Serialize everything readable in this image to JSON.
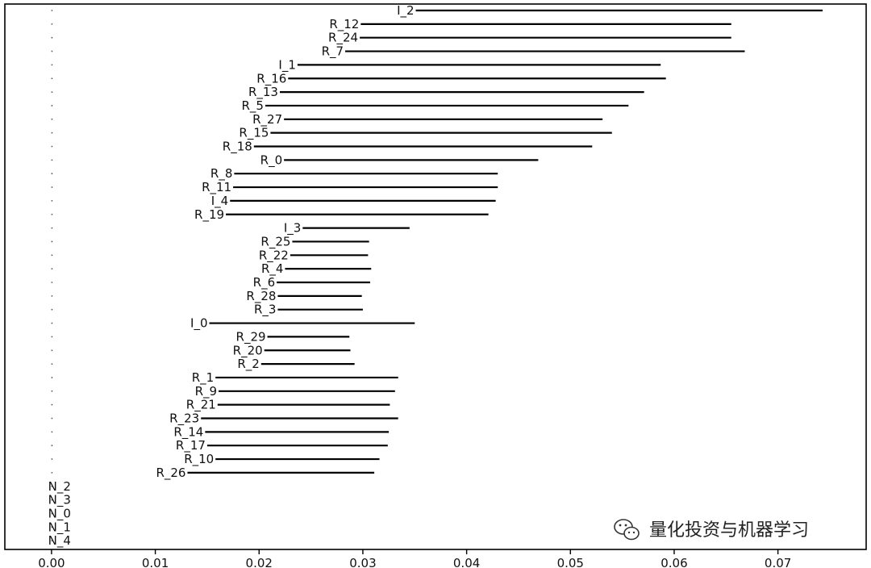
{
  "chart_data": {
    "type": "interval",
    "title": "",
    "xlabel": "",
    "ylabel": "",
    "xlim": [
      -0.0045,
      0.0785
    ],
    "xticks": [
      0.0,
      0.01,
      0.02,
      0.03,
      0.04,
      0.05,
      0.06,
      0.07
    ],
    "xtick_labels": [
      "0.00",
      "0.01",
      "0.02",
      "0.03",
      "0.04",
      "0.05",
      "0.06",
      "0.07"
    ],
    "grid": false,
    "line_color": "#000000",
    "items": [
      {
        "label": "I_2",
        "min": 0.0351,
        "max": 0.0743
      },
      {
        "label": "R_12",
        "min": 0.0298,
        "max": 0.0655
      },
      {
        "label": "R_24",
        "min": 0.0297,
        "max": 0.0655
      },
      {
        "label": "R_7",
        "min": 0.0283,
        "max": 0.0668
      },
      {
        "label": "I_1",
        "min": 0.0237,
        "max": 0.0587
      },
      {
        "label": "R_16",
        "min": 0.0228,
        "max": 0.0592
      },
      {
        "label": "R_13",
        "min": 0.022,
        "max": 0.0571
      },
      {
        "label": "R_5",
        "min": 0.0206,
        "max": 0.0556
      },
      {
        "label": "R_27",
        "min": 0.0224,
        "max": 0.0531
      },
      {
        "label": "R_15",
        "min": 0.0211,
        "max": 0.054
      },
      {
        "label": "R_18",
        "min": 0.0195,
        "max": 0.0521
      },
      {
        "label": "R_0",
        "min": 0.0224,
        "max": 0.0469
      },
      {
        "label": "R_8",
        "min": 0.0176,
        "max": 0.043
      },
      {
        "label": "R_11",
        "min": 0.0175,
        "max": 0.043
      },
      {
        "label": "I_4",
        "min": 0.0172,
        "max": 0.0428
      },
      {
        "label": "R_19",
        "min": 0.0168,
        "max": 0.0421
      },
      {
        "label": "I_3",
        "min": 0.0242,
        "max": 0.0345
      },
      {
        "label": "R_25",
        "min": 0.0232,
        "max": 0.0306
      },
      {
        "label": "R_22",
        "min": 0.023,
        "max": 0.0305
      },
      {
        "label": "R_4",
        "min": 0.0225,
        "max": 0.0308
      },
      {
        "label": "R_6",
        "min": 0.0217,
        "max": 0.0307
      },
      {
        "label": "R_28",
        "min": 0.0218,
        "max": 0.0299
      },
      {
        "label": "R_3",
        "min": 0.0218,
        "max": 0.03
      },
      {
        "label": "I_0",
        "min": 0.0152,
        "max": 0.035
      },
      {
        "label": "R_29",
        "min": 0.0208,
        "max": 0.0287
      },
      {
        "label": "R_20",
        "min": 0.0205,
        "max": 0.0288
      },
      {
        "label": "R_2",
        "min": 0.0202,
        "max": 0.0292
      },
      {
        "label": "R_1",
        "min": 0.0158,
        "max": 0.0334
      },
      {
        "label": "R_9",
        "min": 0.0161,
        "max": 0.0331
      },
      {
        "label": "R_21",
        "min": 0.016,
        "max": 0.0326
      },
      {
        "label": "R_23",
        "min": 0.0144,
        "max": 0.0334
      },
      {
        "label": "R_14",
        "min": 0.0148,
        "max": 0.0325
      },
      {
        "label": "R_17",
        "min": 0.015,
        "max": 0.0324
      },
      {
        "label": "R_10",
        "min": 0.0158,
        "max": 0.0316
      },
      {
        "label": "R_26",
        "min": 0.0131,
        "max": 0.0311
      },
      {
        "label": "N_2",
        "min": 0.0,
        "max": 0.0
      },
      {
        "label": "N_3",
        "min": 0.0,
        "max": 0.0
      },
      {
        "label": "N_0",
        "min": 0.0,
        "max": 0.0
      },
      {
        "label": "N_1",
        "min": 0.0,
        "max": 0.0
      },
      {
        "label": "N_4",
        "min": 0.0,
        "max": 0.0
      }
    ]
  },
  "watermark": {
    "text": "量化投资与机器学习",
    "icon": "wechat-icon"
  }
}
